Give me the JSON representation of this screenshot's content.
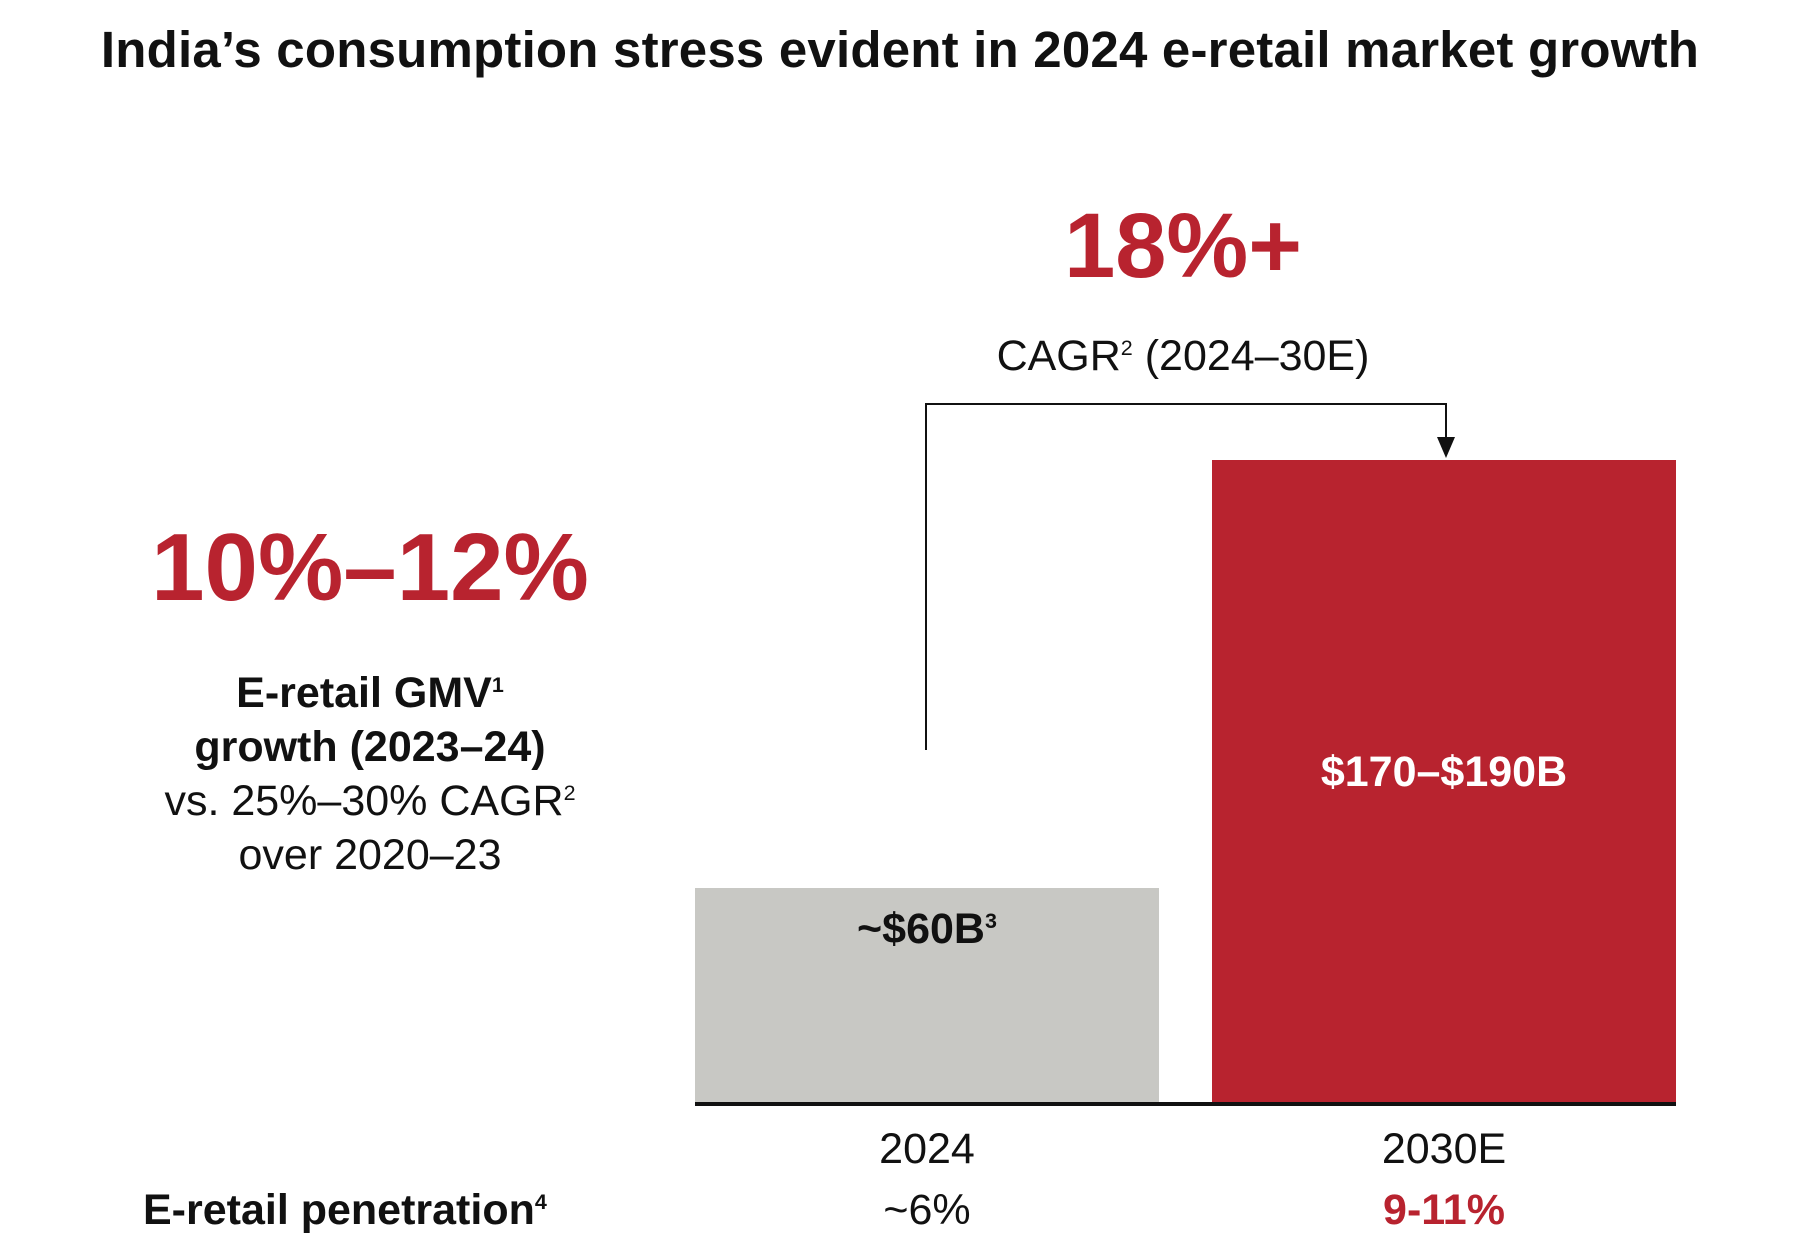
{
  "title": "India’s consumption stress evident in 2024 e-retail market growth",
  "left_panel": {
    "headline": "10%–12%",
    "line1": "E-retail GMV",
    "line1_sup": "1",
    "line2": "growth (2023–24)",
    "line3": "vs. 25%–30% CAGR",
    "line3_sup": "2",
    "line4": "over 2020–23"
  },
  "cagr": {
    "value": "18%+",
    "label_pre": "CAGR",
    "label_sup": "2",
    "label_post": " (2024–30E)"
  },
  "penetration": {
    "label": "E-retail penetration",
    "label_sup": "4"
  },
  "colors": {
    "accent_red": "#b8232f",
    "bar_gray": "#c8c8c4",
    "text": "#111111"
  },
  "chart_data": {
    "type": "bar",
    "categories": [
      "2024",
      "2030E"
    ],
    "values": [
      60,
      180
    ],
    "value_labels": [
      "~$60B",
      "$170–$190B"
    ],
    "value_label_sups": [
      "3",
      ""
    ],
    "penetration": [
      "~6%",
      "9-11%"
    ],
    "bar_colors": [
      "#c8c8c4",
      "#b8232f"
    ],
    "xlabel": "",
    "ylabel": "",
    "ylim": [
      0,
      180
    ],
    "grid": false,
    "annotation": "18%+ CAGR (2024–30E)"
  }
}
